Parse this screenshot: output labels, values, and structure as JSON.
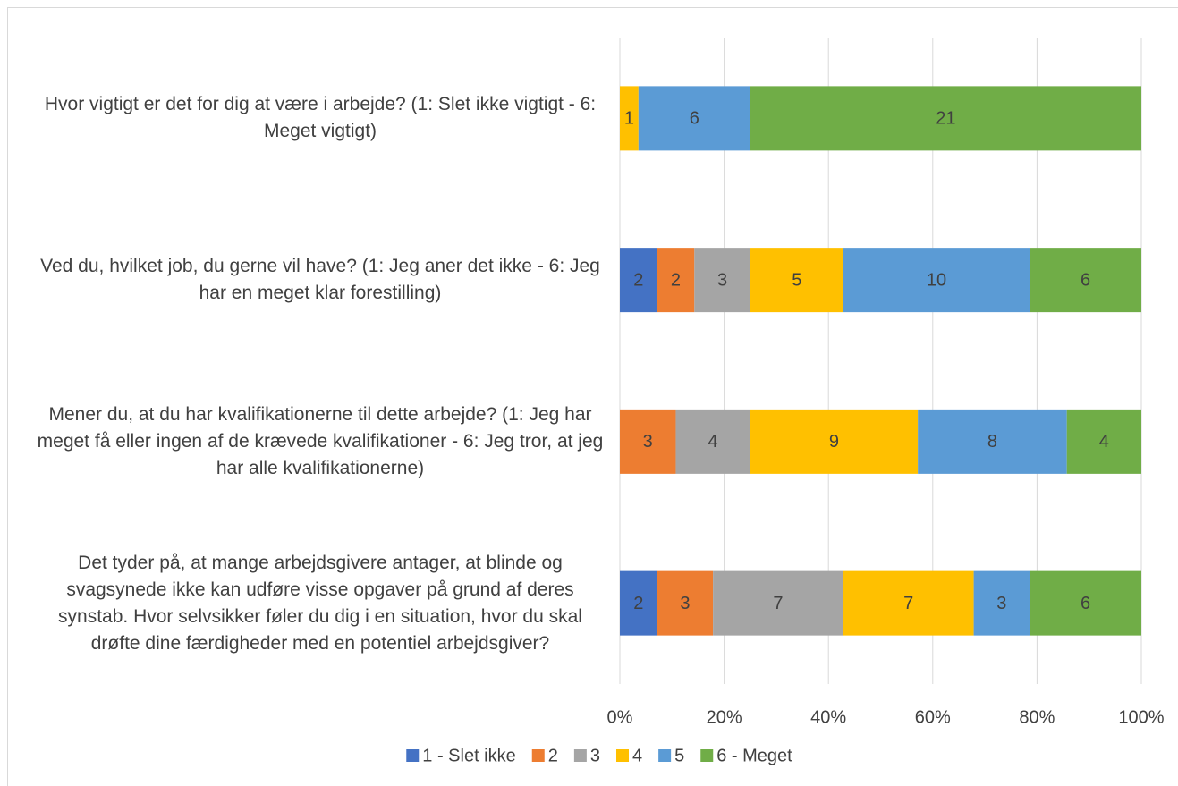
{
  "chart_data": {
    "type": "bar",
    "orientation": "horizontal",
    "stacking": "percent",
    "categories": [
      "Hvor vigtigt er det for dig at være i arbejde? (1: Slet ikke vigtigt - 6: Meget vigtigt)",
      "Ved du, hvilket job, du gerne vil have? (1: Jeg aner det ikke - 6: Jeg har en meget klar forestilling)",
      "Mener du, at du har kvalifikationerne til dette arbejde? (1: Jeg har meget få eller ingen af de krævede kvalifikationer - 6: Jeg tror, at jeg har alle kvalifikationerne)",
      "Det tyder på, at mange arbejdsgivere antager, at blinde og svagsynede ikke kan udføre visse opgaver på grund af deres synstab. Hvor selvsikker føler du dig i en situation, hvor du skal drøfte dine færdigheder med en potentiel arbejdsgiver?"
    ],
    "series": [
      {
        "name": "1 - Slet ikke",
        "color": "#4472c4",
        "values": [
          null,
          2,
          null,
          2
        ]
      },
      {
        "name": "2",
        "color": "#ed7d31",
        "values": [
          null,
          2,
          3,
          3
        ]
      },
      {
        "name": "3",
        "color": "#a5a5a5",
        "values": [
          null,
          3,
          4,
          7
        ]
      },
      {
        "name": "4",
        "color": "#ffc000",
        "values": [
          1,
          5,
          9,
          7
        ]
      },
      {
        "name": "5",
        "color": "#5b9bd5",
        "values": [
          6,
          10,
          8,
          3
        ]
      },
      {
        "name": "6 - Meget",
        "color": "#70ad47",
        "values": [
          21,
          6,
          4,
          6
        ]
      }
    ],
    "xlim": [
      0,
      100
    ],
    "xticks": [
      {
        "value": 0,
        "label": "0%"
      },
      {
        "value": 20,
        "label": "20%"
      },
      {
        "value": 40,
        "label": "40%"
      },
      {
        "value": 60,
        "label": "60%"
      },
      {
        "value": 80,
        "label": "80%"
      },
      {
        "value": 100,
        "label": "100%"
      }
    ],
    "grid": true,
    "legend": "bottom"
  }
}
